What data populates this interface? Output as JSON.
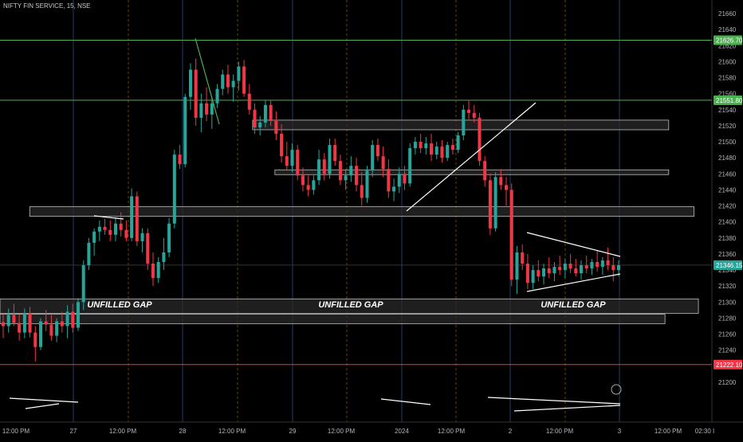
{
  "header": {
    "symbol_line": "NIFTY FIN SERVICE, 15, NSE"
  },
  "price_axis": {
    "ticks": [
      21660,
      21640,
      21620,
      21600,
      21580,
      21560,
      21540,
      21520,
      21500,
      21480,
      21460,
      21440,
      21420,
      21400,
      21380,
      21360,
      21340,
      21320,
      21300,
      21280,
      21260,
      21240,
      21220,
      21200
    ]
  },
  "price_tags": [
    {
      "label": "21626.70",
      "value": 21626.7,
      "color": "#4caf50"
    },
    {
      "label": "21551.80",
      "value": 21551.8,
      "color": "#4caf50"
    },
    {
      "label": "21346.15",
      "value": 21346.15,
      "color": "#26a69a"
    },
    {
      "label": "21222.10",
      "value": 21222.1,
      "color": "#f23645"
    }
  ],
  "time_axis": {
    "labels": [
      "12:00 PM",
      "27",
      "12:00 PM",
      "28",
      "12:00 PM",
      "29",
      "12:00 PM",
      "2024",
      "12:00 PM",
      "2",
      "12:00 PM",
      "3",
      "12:00 PM",
      "02:30 I"
    ]
  },
  "annotations": {
    "gap_labels": [
      "UNFILLED GAP",
      "UNFILLED GAP",
      "UNFILLED GAP"
    ]
  },
  "colors": {
    "up": "#26a69a",
    "down": "#f23645",
    "hline": "#4caf50",
    "support": "#f23645"
  },
  "chart_data": {
    "type": "candlestick",
    "title": "NIFTY FIN SERVICE, 15, NSE",
    "ylim": [
      21180,
      21680
    ],
    "horizontal_levels": [
      21626.7,
      21551.8,
      21222.1
    ],
    "last_price": 21346.15,
    "candles": [
      {
        "o": 21275,
        "h": 21285,
        "l": 21255,
        "c": 21270
      },
      {
        "o": 21270,
        "h": 21292,
        "l": 21262,
        "c": 21284
      },
      {
        "o": 21284,
        "h": 21298,
        "l": 21270,
        "c": 21274
      },
      {
        "o": 21274,
        "h": 21285,
        "l": 21252,
        "c": 21262
      },
      {
        "o": 21262,
        "h": 21292,
        "l": 21255,
        "c": 21286
      },
      {
        "o": 21286,
        "h": 21294,
        "l": 21256,
        "c": 21262
      },
      {
        "o": 21262,
        "h": 21270,
        "l": 21226,
        "c": 21244
      },
      {
        "o": 21244,
        "h": 21280,
        "l": 21240,
        "c": 21276
      },
      {
        "o": 21276,
        "h": 21290,
        "l": 21264,
        "c": 21272
      },
      {
        "o": 21272,
        "h": 21284,
        "l": 21252,
        "c": 21258
      },
      {
        "o": 21258,
        "h": 21280,
        "l": 21250,
        "c": 21276
      },
      {
        "o": 21276,
        "h": 21288,
        "l": 21262,
        "c": 21270
      },
      {
        "o": 21270,
        "h": 21296,
        "l": 21255,
        "c": 21288
      },
      {
        "o": 21288,
        "h": 21298,
        "l": 21262,
        "c": 21268
      },
      {
        "o": 21268,
        "h": 21305,
        "l": 21264,
        "c": 21300
      },
      {
        "o": 21300,
        "h": 21352,
        "l": 21290,
        "c": 21346
      },
      {
        "o": 21346,
        "h": 21380,
        "l": 21340,
        "c": 21374
      },
      {
        "o": 21374,
        "h": 21392,
        "l": 21358,
        "c": 21388
      },
      {
        "o": 21388,
        "h": 21402,
        "l": 21376,
        "c": 21394
      },
      {
        "o": 21394,
        "h": 21404,
        "l": 21384,
        "c": 21390
      },
      {
        "o": 21390,
        "h": 21402,
        "l": 21376,
        "c": 21384
      },
      {
        "o": 21384,
        "h": 21406,
        "l": 21376,
        "c": 21398
      },
      {
        "o": 21398,
        "h": 21412,
        "l": 21382,
        "c": 21390
      },
      {
        "o": 21390,
        "h": 21402,
        "l": 21376,
        "c": 21380
      },
      {
        "o": 21380,
        "h": 21442,
        "l": 21376,
        "c": 21432
      },
      {
        "o": 21432,
        "h": 21438,
        "l": 21370,
        "c": 21376
      },
      {
        "o": 21376,
        "h": 21392,
        "l": 21362,
        "c": 21386
      },
      {
        "o": 21386,
        "h": 21392,
        "l": 21340,
        "c": 21348
      },
      {
        "o": 21348,
        "h": 21362,
        "l": 21320,
        "c": 21330
      },
      {
        "o": 21330,
        "h": 21356,
        "l": 21324,
        "c": 21350
      },
      {
        "o": 21350,
        "h": 21380,
        "l": 21340,
        "c": 21362
      },
      {
        "o": 21362,
        "h": 21405,
        "l": 21356,
        "c": 21398
      },
      {
        "o": 21398,
        "h": 21490,
        "l": 21392,
        "c": 21484
      },
      {
        "o": 21484,
        "h": 21496,
        "l": 21466,
        "c": 21472
      },
      {
        "o": 21472,
        "h": 21560,
        "l": 21468,
        "c": 21556
      },
      {
        "o": 21556,
        "h": 21598,
        "l": 21540,
        "c": 21590
      },
      {
        "o": 21590,
        "h": 21604,
        "l": 21520,
        "c": 21530
      },
      {
        "o": 21530,
        "h": 21560,
        "l": 21512,
        "c": 21548
      },
      {
        "o": 21548,
        "h": 21568,
        "l": 21526,
        "c": 21534
      },
      {
        "o": 21534,
        "h": 21556,
        "l": 21516,
        "c": 21548
      },
      {
        "o": 21548,
        "h": 21572,
        "l": 21542,
        "c": 21566
      },
      {
        "o": 21566,
        "h": 21590,
        "l": 21558,
        "c": 21584
      },
      {
        "o": 21584,
        "h": 21596,
        "l": 21560,
        "c": 21568
      },
      {
        "o": 21568,
        "h": 21584,
        "l": 21550,
        "c": 21576
      },
      {
        "o": 21576,
        "h": 21600,
        "l": 21564,
        "c": 21594
      },
      {
        "o": 21594,
        "h": 21602,
        "l": 21556,
        "c": 21560
      },
      {
        "o": 21560,
        "h": 21572,
        "l": 21534,
        "c": 21540
      },
      {
        "o": 21540,
        "h": 21548,
        "l": 21510,
        "c": 21518
      },
      {
        "o": 21518,
        "h": 21532,
        "l": 21508,
        "c": 21524
      },
      {
        "o": 21524,
        "h": 21552,
        "l": 21518,
        "c": 21546
      },
      {
        "o": 21546,
        "h": 21552,
        "l": 21520,
        "c": 21526
      },
      {
        "o": 21526,
        "h": 21538,
        "l": 21502,
        "c": 21510
      },
      {
        "o": 21510,
        "h": 21522,
        "l": 21474,
        "c": 21482
      },
      {
        "o": 21482,
        "h": 21500,
        "l": 21464,
        "c": 21470
      },
      {
        "o": 21470,
        "h": 21498,
        "l": 21462,
        "c": 21490
      },
      {
        "o": 21490,
        "h": 21496,
        "l": 21452,
        "c": 21458
      },
      {
        "o": 21458,
        "h": 21468,
        "l": 21438,
        "c": 21446
      },
      {
        "o": 21446,
        "h": 21458,
        "l": 21432,
        "c": 21440
      },
      {
        "o": 21440,
        "h": 21458,
        "l": 21434,
        "c": 21452
      },
      {
        "o": 21452,
        "h": 21490,
        "l": 21446,
        "c": 21478
      },
      {
        "o": 21478,
        "h": 21486,
        "l": 21452,
        "c": 21460
      },
      {
        "o": 21460,
        "h": 21504,
        "l": 21454,
        "c": 21496
      },
      {
        "o": 21496,
        "h": 21504,
        "l": 21470,
        "c": 21476
      },
      {
        "o": 21476,
        "h": 21484,
        "l": 21446,
        "c": 21452
      },
      {
        "o": 21452,
        "h": 21466,
        "l": 21440,
        "c": 21458
      },
      {
        "o": 21458,
        "h": 21482,
        "l": 21450,
        "c": 21470
      },
      {
        "o": 21470,
        "h": 21480,
        "l": 21438,
        "c": 21446
      },
      {
        "o": 21446,
        "h": 21462,
        "l": 21420,
        "c": 21430
      },
      {
        "o": 21430,
        "h": 21470,
        "l": 21424,
        "c": 21464
      },
      {
        "o": 21464,
        "h": 21502,
        "l": 21456,
        "c": 21496
      },
      {
        "o": 21496,
        "h": 21504,
        "l": 21476,
        "c": 21482
      },
      {
        "o": 21482,
        "h": 21494,
        "l": 21456,
        "c": 21466
      },
      {
        "o": 21466,
        "h": 21478,
        "l": 21430,
        "c": 21438
      },
      {
        "o": 21438,
        "h": 21454,
        "l": 21426,
        "c": 21444
      },
      {
        "o": 21444,
        "h": 21468,
        "l": 21436,
        "c": 21460
      },
      {
        "o": 21460,
        "h": 21470,
        "l": 21440,
        "c": 21448
      },
      {
        "o": 21448,
        "h": 21498,
        "l": 21444,
        "c": 21492
      },
      {
        "o": 21492,
        "h": 21506,
        "l": 21484,
        "c": 21500
      },
      {
        "o": 21500,
        "h": 21510,
        "l": 21486,
        "c": 21492
      },
      {
        "o": 21492,
        "h": 21506,
        "l": 21484,
        "c": 21498
      },
      {
        "o": 21498,
        "h": 21510,
        "l": 21476,
        "c": 21484
      },
      {
        "o": 21484,
        "h": 21500,
        "l": 21478,
        "c": 21494
      },
      {
        "o": 21494,
        "h": 21502,
        "l": 21474,
        "c": 21480
      },
      {
        "o": 21480,
        "h": 21500,
        "l": 21476,
        "c": 21496
      },
      {
        "o": 21496,
        "h": 21504,
        "l": 21484,
        "c": 21490
      },
      {
        "o": 21490,
        "h": 21512,
        "l": 21486,
        "c": 21508
      },
      {
        "o": 21508,
        "h": 21546,
        "l": 21502,
        "c": 21540
      },
      {
        "o": 21540,
        "h": 21552,
        "l": 21528,
        "c": 21536
      },
      {
        "o": 21536,
        "h": 21546,
        "l": 21524,
        "c": 21530
      },
      {
        "o": 21530,
        "h": 21536,
        "l": 21470,
        "c": 21476
      },
      {
        "o": 21476,
        "h": 21482,
        "l": 21444,
        "c": 21452
      },
      {
        "o": 21452,
        "h": 21460,
        "l": 21384,
        "c": 21392
      },
      {
        "o": 21392,
        "h": 21462,
        "l": 21388,
        "c": 21456
      },
      {
        "o": 21456,
        "h": 21466,
        "l": 21440,
        "c": 21446
      },
      {
        "o": 21446,
        "h": 21456,
        "l": 21420,
        "c": 21440
      },
      {
        "o": 21440,
        "h": 21448,
        "l": 21320,
        "c": 21328
      },
      {
        "o": 21328,
        "h": 21370,
        "l": 21310,
        "c": 21362
      },
      {
        "o": 21362,
        "h": 21372,
        "l": 21340,
        "c": 21348
      },
      {
        "o": 21348,
        "h": 21360,
        "l": 21316,
        "c": 21324
      },
      {
        "o": 21324,
        "h": 21346,
        "l": 21316,
        "c": 21340
      },
      {
        "o": 21340,
        "h": 21352,
        "l": 21326,
        "c": 21332
      },
      {
        "o": 21332,
        "h": 21348,
        "l": 21322,
        "c": 21342
      },
      {
        "o": 21342,
        "h": 21356,
        "l": 21330,
        "c": 21336
      },
      {
        "o": 21336,
        "h": 21350,
        "l": 21326,
        "c": 21344
      },
      {
        "o": 21344,
        "h": 21358,
        "l": 21334,
        "c": 21340
      },
      {
        "o": 21340,
        "h": 21354,
        "l": 21330,
        "c": 21348
      },
      {
        "o": 21348,
        "h": 21360,
        "l": 21336,
        "c": 21342
      },
      {
        "o": 21342,
        "h": 21354,
        "l": 21332,
        "c": 21336
      },
      {
        "o": 21336,
        "h": 21352,
        "l": 21328,
        "c": 21346
      },
      {
        "o": 21346,
        "h": 21358,
        "l": 21336,
        "c": 21342
      },
      {
        "o": 21342,
        "h": 21354,
        "l": 21334,
        "c": 21350
      },
      {
        "o": 21350,
        "h": 21364,
        "l": 21338,
        "c": 21344
      },
      {
        "o": 21344,
        "h": 21356,
        "l": 21334,
        "c": 21352
      },
      {
        "o": 21352,
        "h": 21368,
        "l": 21340,
        "c": 21346
      },
      {
        "o": 21346,
        "h": 21356,
        "l": 21326,
        "c": 21340
      },
      {
        "o": 21340,
        "h": 21352,
        "l": 21332,
        "c": 21346
      }
    ],
    "zones": [
      {
        "y_top": 21527,
        "y_bot": 21515,
        "start": 0.34,
        "end": 0.9
      },
      {
        "y_top": 21465,
        "y_bot": 21460,
        "start": 0.37,
        "end": 0.9
      },
      {
        "y_top": 21419,
        "y_bot": 21407,
        "start": 0.04,
        "end": 0.934
      },
      {
        "y_top": 21304,
        "y_bot": 21286,
        "start": 0.0,
        "end": 0.94
      },
      {
        "y_top": 21285,
        "y_bot": 21273,
        "start": 0.0,
        "end": 0.895
      }
    ]
  }
}
